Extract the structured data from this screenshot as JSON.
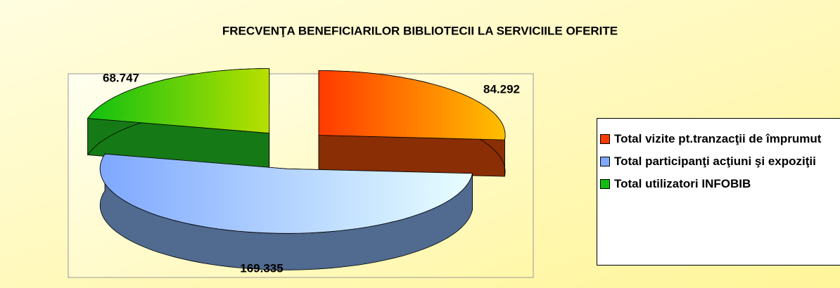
{
  "chart_data": {
    "type": "pie3d",
    "title": "FRECVENŢA BENEFICIARILOR BIBLIOTECII LA SERVICIILE OFERITE",
    "categories": [
      "Total vizite pt.tranzacţii de împrumut",
      "Total participanţi acţiuni şi expoziţii",
      "Total utilizatori INFOBIB"
    ],
    "values": [
      84292,
      169335,
      68747
    ],
    "value_labels": [
      "84.292",
      "169.335",
      "68.747"
    ],
    "colors": [
      [
        "#ff3a00",
        "#ffc000"
      ],
      [
        "#7fa8ff",
        "#e8ffff"
      ],
      [
        "#10c010",
        "#b8e000"
      ]
    ],
    "side_colors": [
      "#8a2e05",
      "#506a90",
      "#157a15"
    ],
    "legend": "right"
  }
}
